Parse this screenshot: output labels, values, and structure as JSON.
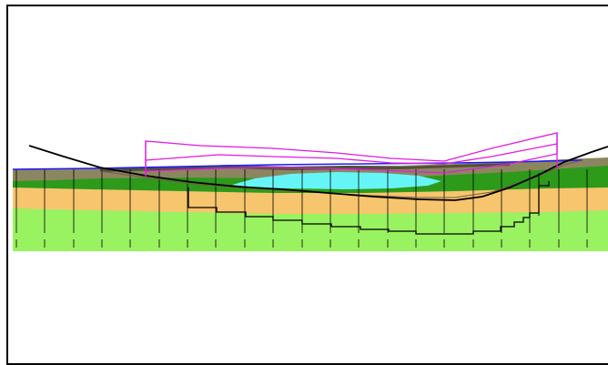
{
  "viewer": {
    "frame_color": "#000000",
    "background": "#ffffff"
  },
  "profile": {
    "strata": [
      {
        "name": "surface-soil",
        "color": "#8c8660"
      },
      {
        "name": "upper-green",
        "color": "#2d9a1a"
      },
      {
        "name": "sand-layer",
        "color": "#f7c56e"
      },
      {
        "name": "lower-green",
        "color": "#99f260"
      },
      {
        "name": "water-lens",
        "color": "#66f5f7"
      }
    ],
    "line_colors": {
      "ground-line": "#1a1aff",
      "alignment-curve": "#000000",
      "excavation-outline": "#000000",
      "envelope": "#e21ae2"
    },
    "station_count": 21
  }
}
